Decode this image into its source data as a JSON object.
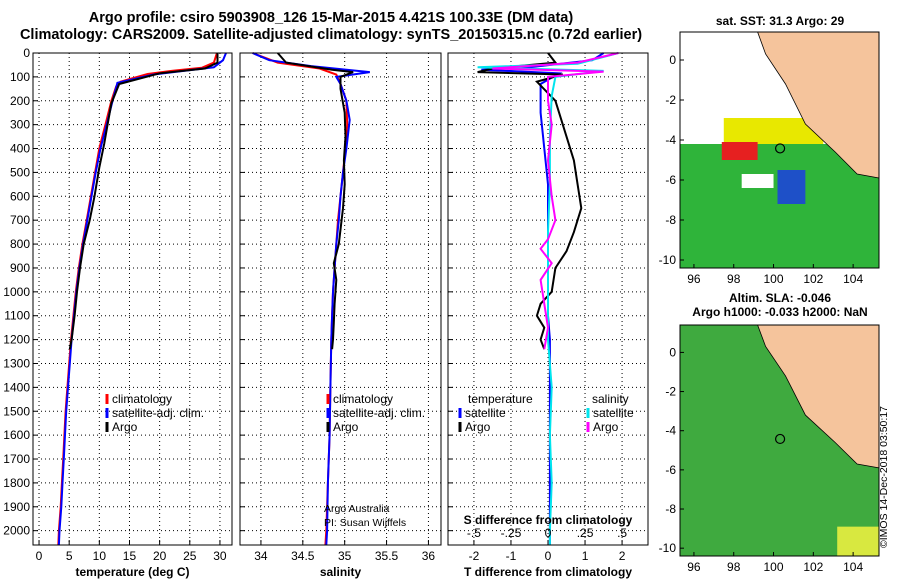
{
  "titles": {
    "line1": "Argo profile: csiro 5903908_126 15-Mar-2015 4.421S 100.33E (DM data)",
    "line2": "Climatology: CARS2009. Satellite-adjusted climatology: synTS_20150315.nc (0.72d earlier)"
  },
  "credits": {
    "argo_line1": "Argo Australia",
    "argo_line2": "PI: Susan Wijffels",
    "imos": "©IMOS 14-Dec-2018 03:50:17"
  },
  "colors": {
    "climatology": "#ff0000",
    "satellite": "#0000ff",
    "argo": "#000000",
    "sat_salinity": "#00e5ee",
    "argo_salinity": "#ff00ff",
    "land": "#f5c49c",
    "grid": "#000000"
  },
  "chart_data": [
    {
      "type": "line",
      "xlabel": "temperature (deg C)",
      "ylabel": "",
      "xlim": [
        -1,
        32
      ],
      "ylim": [
        2060,
        0
      ],
      "xticks": [
        0,
        5,
        10,
        15,
        20,
        25,
        30
      ],
      "yticks": [
        0,
        100,
        200,
        300,
        400,
        500,
        600,
        700,
        800,
        900,
        1000,
        1100,
        1200,
        1300,
        1400,
        1500,
        1600,
        1700,
        1800,
        1900,
        2000
      ],
      "legend": [
        "climatology",
        "satellite-adj. clim.",
        "Argo"
      ],
      "series": [
        {
          "name": "climatology",
          "color": "#ff0000",
          "points": [
            [
              29.5,
              0
            ],
            [
              29,
              40
            ],
            [
              27,
              62
            ],
            [
              22,
              75
            ],
            [
              18,
              88
            ],
            [
              13.5,
              120
            ],
            [
              12.8,
              140
            ],
            [
              12,
              200
            ],
            [
              11,
              300
            ],
            [
              10,
              400
            ],
            [
              9.3,
              500
            ],
            [
              8.6,
              600
            ],
            [
              7.9,
              700
            ],
            [
              7.2,
              800
            ],
            [
              6.6,
              900
            ],
            [
              6.1,
              1000
            ],
            [
              5.7,
              1100
            ],
            [
              5.3,
              1200
            ],
            [
              5,
              1300
            ],
            [
              4.7,
              1400
            ],
            [
              4.4,
              1500
            ],
            [
              4.2,
              1600
            ],
            [
              4,
              1700
            ],
            [
              3.8,
              1800
            ],
            [
              3.6,
              1900
            ],
            [
              3.3,
              2000
            ],
            [
              3.2,
              2060
            ]
          ]
        },
        {
          "name": "satellite-adj. clim.",
          "color": "#0000ff",
          "points": [
            [
              31,
              0
            ],
            [
              30.5,
              30
            ],
            [
              29,
              60
            ],
            [
              24,
              75
            ],
            [
              19,
              90
            ],
            [
              13,
              125
            ],
            [
              12.2,
              200
            ],
            [
              11.2,
              300
            ],
            [
              10.2,
              400
            ],
            [
              9.4,
              500
            ],
            [
              8.7,
              600
            ],
            [
              8,
              700
            ],
            [
              7.3,
              800
            ],
            [
              6.7,
              900
            ],
            [
              6.2,
              1000
            ],
            [
              5.8,
              1100
            ],
            [
              5.4,
              1200
            ],
            [
              5.1,
              1300
            ],
            [
              4.8,
              1400
            ],
            [
              4.5,
              1500
            ],
            [
              4.3,
              1600
            ],
            [
              4.1,
              1700
            ],
            [
              3.9,
              1800
            ],
            [
              3.7,
              1900
            ],
            [
              3.4,
              2000
            ],
            [
              3.3,
              2060
            ]
          ]
        },
        {
          "name": "Argo",
          "color": "#000000",
          "points": [
            [
              29.6,
              0
            ],
            [
              29.6,
              40
            ],
            [
              27.5,
              65
            ],
            [
              20,
              85
            ],
            [
              13.3,
              130
            ],
            [
              12,
              210
            ],
            [
              11.5,
              280
            ],
            [
              10.8,
              380
            ],
            [
              10,
              480
            ],
            [
              9.2,
              600
            ],
            [
              8.4,
              700
            ],
            [
              7.4,
              800
            ],
            [
              6.8,
              900
            ],
            [
              6.3,
              1000
            ],
            [
              5.9,
              1100
            ],
            [
              5.4,
              1200
            ],
            [
              5.1,
              1240
            ]
          ]
        }
      ]
    },
    {
      "type": "line",
      "xlabel": "salinity",
      "ylabel": "",
      "xlim": [
        33.75,
        36.15
      ],
      "ylim": [
        2060,
        0
      ],
      "xticks": [
        34,
        34.5,
        35,
        35.5,
        36
      ],
      "legend": [
        "climatology",
        "satellite-adj. clim.",
        "Argo"
      ],
      "series": [
        {
          "name": "climatology",
          "color": "#ff0000",
          "points": [
            [
              33.9,
              0
            ],
            [
              34.2,
              40
            ],
            [
              34.7,
              65
            ],
            [
              34.9,
              90
            ],
            [
              34.95,
              130
            ],
            [
              35.02,
              200
            ],
            [
              35.03,
              300
            ],
            [
              35.01,
              400
            ],
            [
              34.98,
              500
            ],
            [
              34.95,
              600
            ],
            [
              34.92,
              700
            ],
            [
              34.9,
              800
            ],
            [
              34.88,
              900
            ],
            [
              34.86,
              1000
            ],
            [
              34.85,
              1100
            ],
            [
              34.84,
              1200
            ],
            [
              34.83,
              1400
            ],
            [
              34.82,
              1600
            ],
            [
              34.8,
              1800
            ],
            [
              34.78,
              2000
            ],
            [
              34.77,
              2060
            ]
          ]
        },
        {
          "name": "satellite-adj. clim.",
          "color": "#0000ff",
          "points": [
            [
              33.9,
              0
            ],
            [
              34.1,
              30
            ],
            [
              34.6,
              55
            ],
            [
              35.3,
              80
            ],
            [
              34.9,
              100
            ],
            [
              34.95,
              130
            ],
            [
              35.02,
              200
            ],
            [
              35.06,
              280
            ],
            [
              35.02,
              400
            ],
            [
              34.98,
              500
            ],
            [
              34.95,
              600
            ],
            [
              34.93,
              700
            ],
            [
              34.9,
              800
            ],
            [
              34.88,
              900
            ],
            [
              34.86,
              1000
            ],
            [
              34.85,
              1100
            ],
            [
              34.84,
              1200
            ],
            [
              34.83,
              1400
            ],
            [
              34.82,
              1600
            ],
            [
              34.8,
              1800
            ],
            [
              34.79,
              2000
            ],
            [
              34.78,
              2060
            ]
          ]
        },
        {
          "name": "Argo",
          "color": "#000000",
          "points": [
            [
              34.2,
              0
            ],
            [
              34.3,
              40
            ],
            [
              34.85,
              70
            ],
            [
              35.1,
              80
            ],
            [
              34.95,
              100
            ],
            [
              34.95,
              150
            ],
            [
              35,
              250
            ],
            [
              35.01,
              350
            ],
            [
              34.99,
              450
            ],
            [
              35,
              550
            ],
            [
              34.98,
              650
            ],
            [
              34.93,
              800
            ],
            [
              34.87,
              880
            ],
            [
              34.9,
              950
            ],
            [
              34.88,
              1050
            ],
            [
              34.87,
              1130
            ],
            [
              34.86,
              1200
            ],
            [
              34.85,
              1240
            ]
          ]
        }
      ]
    },
    {
      "type": "line",
      "xlabel": "T difference from climatology",
      "ylabel": "",
      "xlim": [
        -2.7,
        2.7
      ],
      "ylim": [
        2060,
        0
      ],
      "xticks": [
        -2,
        -1,
        0,
        1,
        2
      ],
      "xticks_top": [
        -0.5,
        -0.25,
        0,
        0.25,
        0.5
      ],
      "xlabel_top": "S difference from climatology",
      "legend_temperature": [
        "temperature",
        "satellite",
        "Argo"
      ],
      "legend_salinity": [
        "salinity",
        "satellite",
        "Argo"
      ],
      "series": [
        {
          "name": "temperature satellite",
          "color": "#0000ff",
          "points": [
            [
              1.5,
              0
            ],
            [
              1.2,
              30
            ],
            [
              -0.5,
              60
            ],
            [
              -1.8,
              70
            ],
            [
              0.3,
              85
            ],
            [
              -0.2,
              130
            ],
            [
              -0.2,
              250
            ],
            [
              -0.1,
              400
            ],
            [
              0,
              550
            ],
            [
              0,
              700
            ],
            [
              0,
              800
            ],
            [
              0,
              900
            ],
            [
              0,
              1000
            ],
            [
              0,
              1100
            ],
            [
              0.05,
              1200
            ],
            [
              0.05,
              1400
            ],
            [
              0.05,
              1600
            ],
            [
              0.05,
              1800
            ],
            [
              0.05,
              2000
            ],
            [
              0.05,
              2060
            ]
          ]
        },
        {
          "name": "temperature Argo",
          "color": "#000000",
          "points": [
            [
              0,
              0
            ],
            [
              0.2,
              40
            ],
            [
              -1.5,
              65
            ],
            [
              -1.9,
              80
            ],
            [
              0.4,
              90
            ],
            [
              -0.3,
              120
            ],
            [
              0.2,
              200
            ],
            [
              0.3,
              250
            ],
            [
              0.5,
              350
            ],
            [
              0.7,
              450
            ],
            [
              0.8,
              550
            ],
            [
              0.9,
              650
            ],
            [
              0.7,
              750
            ],
            [
              0.5,
              830
            ],
            [
              0.2,
              900
            ],
            [
              0.1,
              1000
            ],
            [
              -0.2,
              1050
            ],
            [
              -0.3,
              1100
            ],
            [
              -0.1,
              1150
            ],
            [
              -0.2,
              1200
            ],
            [
              -0.1,
              1240
            ]
          ]
        },
        {
          "name": "salinity satellite",
          "color": "#00e5ee",
          "points": [
            [
              1.9,
              0
            ],
            [
              0.8,
              45
            ],
            [
              -1.9,
              60
            ],
            [
              1.5,
              75
            ],
            [
              0.2,
              100
            ],
            [
              0.1,
              180
            ],
            [
              0.05,
              350
            ],
            [
              0.05,
              550
            ],
            [
              0,
              750
            ],
            [
              0,
              1000
            ],
            [
              0,
              1200
            ],
            [
              0.1,
              1400
            ],
            [
              0.05,
              1600
            ],
            [
              0.1,
              1800
            ],
            [
              0.05,
              2000
            ],
            [
              0.05,
              2060
            ]
          ]
        },
        {
          "name": "salinity Argo",
          "color": "#ff00ff",
          "points": [
            [
              1.9,
              0
            ],
            [
              0.8,
              40
            ],
            [
              -1.5,
              65
            ],
            [
              1.5,
              78
            ],
            [
              0,
              100
            ],
            [
              0,
              200
            ],
            [
              0.1,
              300
            ],
            [
              0,
              450
            ],
            [
              0.1,
              600
            ],
            [
              0.2,
              700
            ],
            [
              0,
              780
            ],
            [
              -0.2,
              820
            ],
            [
              0.1,
              880
            ],
            [
              -0.2,
              950
            ],
            [
              -0.1,
              1050
            ],
            [
              0,
              1150
            ],
            [
              -0.1,
              1240
            ]
          ]
        }
      ]
    },
    {
      "type": "heatmap",
      "title": "sat. SST: 31.3 Argo: 29",
      "xlim": [
        95.3,
        105.3
      ],
      "ylim": [
        -10.4,
        1.4
      ],
      "xticks": [
        96,
        98,
        100,
        102,
        104
      ],
      "yticks": [
        0,
        -2,
        -4,
        -6,
        -8,
        -10
      ],
      "argo_position": [
        100.33,
        -4.421
      ]
    },
    {
      "type": "heatmap",
      "title_line1": "Altim. SLA: -0.046",
      "title_line2": "Argo h1000: -0.033 h2000: NaN",
      "xlim": [
        95.3,
        105.3
      ],
      "ylim": [
        -10.4,
        1.4
      ],
      "xticks": [
        96,
        98,
        100,
        102,
        104
      ],
      "yticks": [
        0,
        -2,
        -4,
        -6,
        -8,
        -10
      ],
      "argo_position": [
        100.33,
        -4.421
      ]
    }
  ]
}
